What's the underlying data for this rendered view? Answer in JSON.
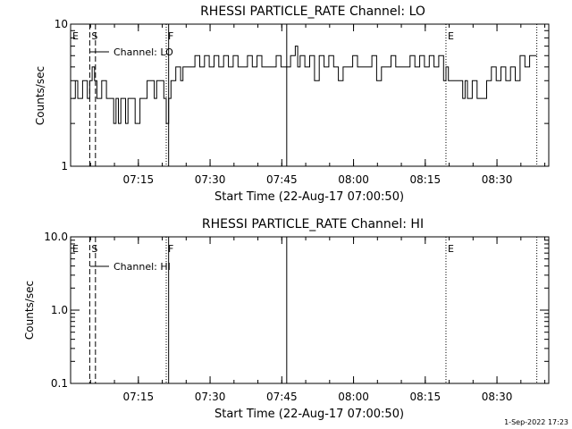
{
  "chart_data": [
    {
      "type": "line",
      "title": "RHESSI PARTICLE_RATE Channel: LO",
      "xlabel": "Start Time (22-Aug-17 07:00:50)",
      "ylabel": "Counts/sec",
      "yscale": "log",
      "ylim": [
        1,
        10
      ],
      "xlim": [
        0,
        100.0
      ],
      "xtick_values": [
        14.17,
        29.17,
        44.17,
        59.17,
        74.17,
        89.17
      ],
      "xtick_labels": [
        "07:15",
        "07:30",
        "07:45",
        "08:00",
        "08:15",
        "08:30"
      ],
      "ytick_values": [
        1,
        10
      ],
      "ytick_labels": [
        "1",
        "10"
      ],
      "legend": "Channel: LO",
      "legend_position": "top-left",
      "markers": [
        {
          "label": "E",
          "x": 0.0,
          "style": "none"
        },
        {
          "label": "S",
          "x": 4.0,
          "style": "dashed"
        },
        {
          "label": "",
          "x": 5.2,
          "style": "dashed"
        },
        {
          "label": "F",
          "x": 20.0,
          "style": "dotted"
        },
        {
          "label": "",
          "x": 20.5,
          "style": "solid"
        },
        {
          "label": "",
          "x": 45.2,
          "style": "solid"
        },
        {
          "label": "E",
          "x": 78.5,
          "style": "dotted"
        },
        {
          "label": "",
          "x": 97.5,
          "style": "dotted"
        }
      ],
      "series": [
        {
          "values": [
            [
              0.5,
              3
            ],
            [
              1.0,
              4
            ],
            [
              1.5,
              3
            ],
            [
              2.0,
              3
            ],
            [
              2.5,
              4
            ],
            [
              3.0,
              4
            ],
            [
              3.5,
              3
            ],
            [
              4.0,
              4
            ],
            [
              4.5,
              5
            ],
            [
              5.0,
              4
            ],
            [
              5.5,
              3
            ],
            [
              6.0,
              3
            ],
            [
              6.5,
              4
            ],
            [
              7.0,
              4
            ],
            [
              7.5,
              3
            ],
            [
              8.0,
              3
            ],
            [
              8.5,
              3
            ],
            [
              9.0,
              2
            ],
            [
              9.5,
              3
            ],
            [
              10.0,
              2
            ],
            [
              10.5,
              3
            ],
            [
              11.0,
              3
            ],
            [
              11.5,
              2
            ],
            [
              12.0,
              3
            ],
            [
              12.5,
              3
            ],
            [
              13.0,
              3
            ],
            [
              13.5,
              2
            ],
            [
              14.0,
              2
            ],
            [
              14.5,
              3
            ],
            [
              15.0,
              3
            ],
            [
              15.5,
              3
            ],
            [
              16.0,
              4
            ],
            [
              16.5,
              4
            ],
            [
              17.0,
              4
            ],
            [
              17.5,
              3
            ],
            [
              18.0,
              4
            ],
            [
              18.5,
              4
            ],
            [
              19.0,
              4
            ],
            [
              19.5,
              3
            ],
            [
              20.0,
              2
            ],
            [
              20.5,
              3
            ],
            [
              21.0,
              4
            ],
            [
              21.5,
              4
            ],
            [
              22.0,
              5
            ],
            [
              22.5,
              5
            ],
            [
              23.0,
              4
            ],
            [
              23.5,
              5
            ],
            [
              24.0,
              5
            ],
            [
              25.0,
              5
            ],
            [
              26.0,
              6
            ],
            [
              27.0,
              5
            ],
            [
              28.0,
              6
            ],
            [
              29.0,
              5
            ],
            [
              30.0,
              6
            ],
            [
              31.0,
              5
            ],
            [
              32.0,
              6
            ],
            [
              33.0,
              5
            ],
            [
              34.0,
              6
            ],
            [
              35.0,
              5
            ],
            [
              36.0,
              5
            ],
            [
              37.0,
              6
            ],
            [
              38.0,
              5
            ],
            [
              39.0,
              6
            ],
            [
              40.0,
              5
            ],
            [
              41.0,
              5
            ],
            [
              42.0,
              5
            ],
            [
              43.0,
              6
            ],
            [
              44.0,
              5
            ],
            [
              45.0,
              5
            ],
            [
              46.0,
              6
            ],
            [
              47.0,
              7
            ],
            [
              47.5,
              5
            ],
            [
              48.0,
              6
            ],
            [
              49.0,
              5
            ],
            [
              50.0,
              6
            ],
            [
              51.0,
              4
            ],
            [
              52.0,
              6
            ],
            [
              53.0,
              5
            ],
            [
              54.0,
              6
            ],
            [
              55.0,
              5
            ],
            [
              56.0,
              4
            ],
            [
              57.0,
              5
            ],
            [
              58.0,
              5
            ],
            [
              59.0,
              6
            ],
            [
              60.0,
              5
            ],
            [
              61.0,
              5
            ],
            [
              62.0,
              5
            ],
            [
              63.0,
              6
            ],
            [
              64.0,
              4
            ],
            [
              65.0,
              5
            ],
            [
              66.0,
              5
            ],
            [
              67.0,
              6
            ],
            [
              68.0,
              5
            ],
            [
              69.0,
              5
            ],
            [
              70.0,
              5
            ],
            [
              71.0,
              6
            ],
            [
              72.0,
              5
            ],
            [
              73.0,
              6
            ],
            [
              74.0,
              5
            ],
            [
              75.0,
              6
            ],
            [
              76.0,
              5
            ],
            [
              77.0,
              6
            ],
            [
              78.0,
              4
            ],
            [
              78.5,
              5
            ],
            [
              79.0,
              4
            ],
            [
              80.0,
              4
            ],
            [
              81.0,
              4
            ],
            [
              82.0,
              3
            ],
            [
              82.5,
              4
            ],
            [
              83.0,
              3
            ],
            [
              84.0,
              4
            ],
            [
              85.0,
              3
            ],
            [
              86.0,
              3
            ],
            [
              87.0,
              4
            ],
            [
              88.0,
              5
            ],
            [
              89.0,
              4
            ],
            [
              90.0,
              5
            ],
            [
              91.0,
              4
            ],
            [
              92.0,
              5
            ],
            [
              93.0,
              4
            ],
            [
              94.0,
              6
            ],
            [
              94.5,
              6
            ],
            [
              95.0,
              5
            ],
            [
              96.0,
              6
            ],
            [
              97.0,
              6
            ],
            [
              97.5,
              6
            ]
          ]
        }
      ]
    },
    {
      "type": "line",
      "title": "RHESSI PARTICLE_RATE Channel: HI",
      "xlabel": "Start Time (22-Aug-17 07:00:50)",
      "ylabel": "Counts/sec",
      "yscale": "log",
      "ylim": [
        0.1,
        10
      ],
      "xlim": [
        0,
        100.0
      ],
      "xtick_values": [
        14.17,
        29.17,
        44.17,
        59.17,
        74.17,
        89.17
      ],
      "xtick_labels": [
        "07:15",
        "07:30",
        "07:45",
        "08:00",
        "08:15",
        "08:30"
      ],
      "ytick_values": [
        0.1,
        1,
        10
      ],
      "ytick_labels": [
        "0.1",
        "1.0",
        "10.0"
      ],
      "legend": "Channel: HI",
      "legend_position": "top-left",
      "markers": [
        {
          "label": "E",
          "x": 0.0,
          "style": "none"
        },
        {
          "label": "S",
          "x": 4.0,
          "style": "dashed"
        },
        {
          "label": "",
          "x": 5.2,
          "style": "dashed"
        },
        {
          "label": "F",
          "x": 20.0,
          "style": "dotted"
        },
        {
          "label": "",
          "x": 20.5,
          "style": "solid"
        },
        {
          "label": "",
          "x": 45.2,
          "style": "solid"
        },
        {
          "label": "E",
          "x": 78.5,
          "style": "dotted"
        },
        {
          "label": "",
          "x": 97.5,
          "style": "dotted"
        }
      ],
      "series": []
    }
  ],
  "footer": {
    "timestamp": "1-Sep-2022 17:23"
  }
}
